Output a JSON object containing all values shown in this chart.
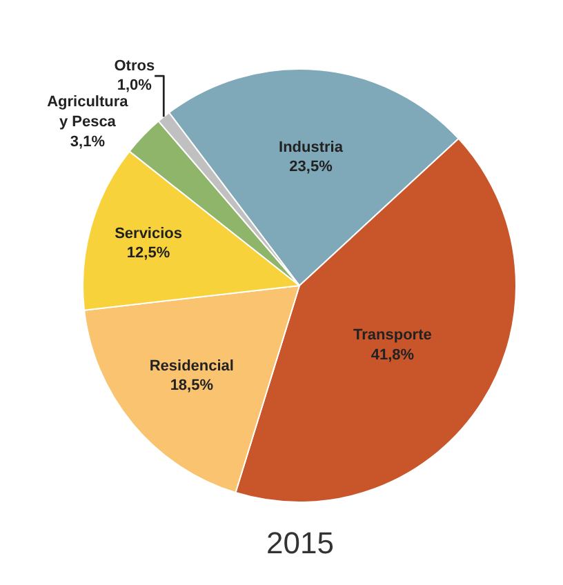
{
  "chart_data": {
    "type": "pie",
    "title": "2015",
    "categories": [
      "Industria",
      "Transporte",
      "Residencial",
      "Servicios",
      "Agricultura\ny Pesca",
      "Otros"
    ],
    "values": [
      23.5,
      41.8,
      18.5,
      12.5,
      3.1,
      1.0
    ],
    "value_labels": [
      "23,5%",
      "41,8%",
      "18,5%",
      "12,5%",
      "3,1%",
      "1,0%"
    ],
    "colors": [
      "#7fa9b8",
      "#c9552a",
      "#f9c36f",
      "#f7d23a",
      "#8fb56a",
      "#c0c0c0"
    ],
    "legend": false
  }
}
